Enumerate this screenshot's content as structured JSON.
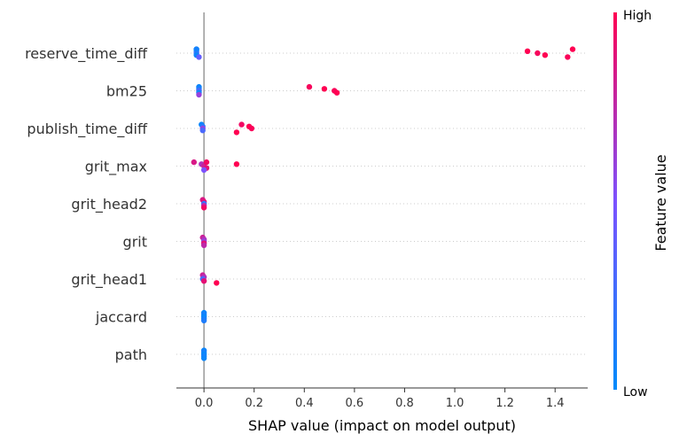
{
  "chart_data": {
    "type": "scatter",
    "subtype": "shap-beeswarm",
    "xlabel": "SHAP value (impact on model output)",
    "xlim": [
      -0.11,
      1.53
    ],
    "xticks": [
      0.0,
      0.2,
      0.4,
      0.6,
      0.8,
      1.0,
      1.2,
      1.4
    ],
    "xtick_labels": [
      "0.0",
      "0.2",
      "0.4",
      "0.6",
      "0.8",
      "1.0",
      "1.2",
      "1.4"
    ],
    "grid": false,
    "colorbar": {
      "label": "Feature value",
      "high_label": "High",
      "low_label": "Low",
      "high_color": "#ff0052",
      "low_color": "#008bfb"
    },
    "features": [
      {
        "name": "reserve_time_diff",
        "points": [
          {
            "x": -0.03,
            "v": 0.02
          },
          {
            "x": -0.03,
            "v": 0.1
          },
          {
            "x": -0.03,
            "v": 0.25
          },
          {
            "x": -0.03,
            "v": 0.05
          },
          {
            "x": -0.02,
            "v": 0.4
          },
          {
            "x": -0.03,
            "v": 0.08
          },
          {
            "x": 1.29,
            "v": 1.0
          },
          {
            "x": 1.33,
            "v": 0.97
          },
          {
            "x": 1.36,
            "v": 1.0
          },
          {
            "x": 1.45,
            "v": 0.98
          },
          {
            "x": 1.47,
            "v": 1.0
          }
        ]
      },
      {
        "name": "bm25",
        "points": [
          {
            "x": -0.02,
            "v": 0.05
          },
          {
            "x": -0.02,
            "v": 0.1
          },
          {
            "x": -0.02,
            "v": 0.3
          },
          {
            "x": -0.02,
            "v": 0.02
          },
          {
            "x": -0.02,
            "v": 0.6
          },
          {
            "x": 0.42,
            "v": 0.97
          },
          {
            "x": 0.48,
            "v": 1.0
          },
          {
            "x": 0.52,
            "v": 0.98
          },
          {
            "x": 0.53,
            "v": 1.0
          }
        ]
      },
      {
        "name": "publish_time_diff",
        "points": [
          {
            "x": -0.01,
            "v": 0.05
          },
          {
            "x": -0.005,
            "v": 0.15
          },
          {
            "x": -0.005,
            "v": 0.6
          },
          {
            "x": -0.005,
            "v": 0.3
          },
          {
            "x": 0.13,
            "v": 1.0
          },
          {
            "x": 0.15,
            "v": 0.95
          },
          {
            "x": 0.18,
            "v": 1.0
          },
          {
            "x": 0.19,
            "v": 0.98
          }
        ]
      },
      {
        "name": "grit_max",
        "points": [
          {
            "x": -0.04,
            "v": 0.85
          },
          {
            "x": -0.01,
            "v": 0.7
          },
          {
            "x": 0.0,
            "v": 0.8
          },
          {
            "x": 0.01,
            "v": 0.9
          },
          {
            "x": 0.0,
            "v": 0.5
          },
          {
            "x": 0.01,
            "v": 0.95
          },
          {
            "x": 0.13,
            "v": 1.0
          }
        ]
      },
      {
        "name": "grit_head2",
        "points": [
          {
            "x": -0.005,
            "v": 0.85
          },
          {
            "x": 0.0,
            "v": 0.9
          },
          {
            "x": 0.0,
            "v": 0.2
          },
          {
            "x": 0.0,
            "v": 0.75
          },
          {
            "x": 0.0,
            "v": 0.95
          }
        ]
      },
      {
        "name": "grit",
        "points": [
          {
            "x": -0.005,
            "v": 0.8
          },
          {
            "x": 0.0,
            "v": 0.7
          },
          {
            "x": 0.0,
            "v": 0.6
          },
          {
            "x": 0.0,
            "v": 0.9
          },
          {
            "x": 0.0,
            "v": 0.75
          }
        ]
      },
      {
        "name": "grit_head1",
        "points": [
          {
            "x": -0.005,
            "v": 0.8
          },
          {
            "x": 0.0,
            "v": 0.7
          },
          {
            "x": -0.005,
            "v": 0.3
          },
          {
            "x": 0.0,
            "v": 0.9
          },
          {
            "x": 0.05,
            "v": 1.0
          }
        ]
      },
      {
        "name": "jaccard",
        "points": [
          {
            "x": 0.0,
            "v": 0.05
          },
          {
            "x": 0.0,
            "v": 0.1
          },
          {
            "x": 0.0,
            "v": 0.02
          },
          {
            "x": 0.0,
            "v": 0.08
          },
          {
            "x": 0.0,
            "v": 0.12
          }
        ]
      },
      {
        "name": "path",
        "points": [
          {
            "x": 0.0,
            "v": 0.05
          },
          {
            "x": 0.0,
            "v": 0.1
          },
          {
            "x": 0.0,
            "v": 0.02
          },
          {
            "x": 0.0,
            "v": 0.08
          },
          {
            "x": 0.0,
            "v": 0.04
          }
        ]
      }
    ]
  }
}
